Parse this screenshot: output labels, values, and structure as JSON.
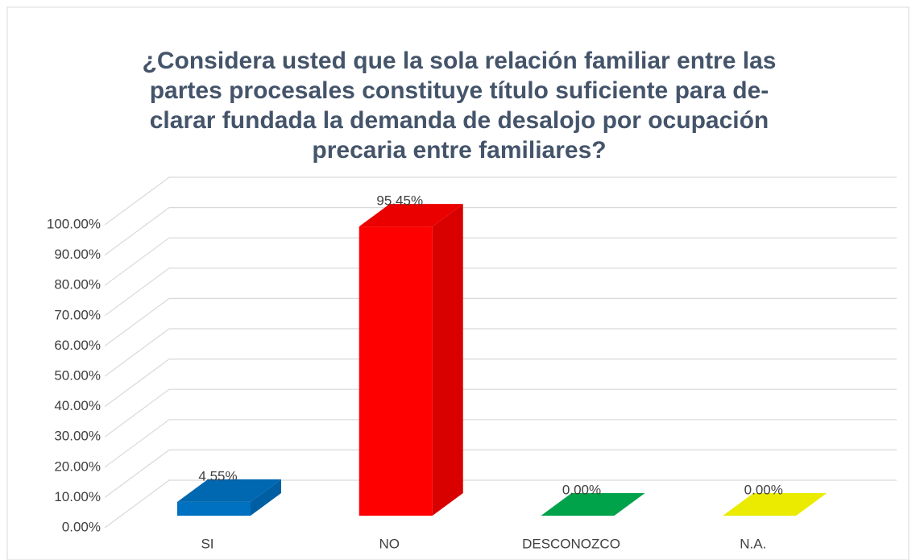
{
  "chart_data": {
    "type": "bar3d",
    "title_lines": [
      "¿Considera usted que la sola relación familiar entre las",
      "partes procesales constituye título suficiente para de-",
      "clarar fundada la demanda de desalojo por ocupación",
      "precaria entre familiares?"
    ],
    "categories": [
      "SI",
      "NO",
      "DESCONOZCO",
      "N.A."
    ],
    "values": [
      4.55,
      95.45,
      0,
      0
    ],
    "value_labels": [
      "4.55%",
      "95.45%",
      "0.00%",
      "0.00%"
    ],
    "colors": [
      "#0070c0",
      "#ff0000",
      "#00b050",
      "#ffff00"
    ],
    "ylim": [
      0,
      100
    ],
    "yticks": [
      {
        "value": 0,
        "label": "0.00%"
      },
      {
        "value": 10,
        "label": "10.00%"
      },
      {
        "value": 20,
        "label": "20.00%"
      },
      {
        "value": 30,
        "label": "30.00%"
      },
      {
        "value": 40,
        "label": "40.00%"
      },
      {
        "value": 50,
        "label": "50.00%"
      },
      {
        "value": 60,
        "label": "60.00%"
      },
      {
        "value": 70,
        "label": "70.00%"
      },
      {
        "value": 80,
        "label": "80.00%"
      },
      {
        "value": 90,
        "label": "90.00%"
      },
      {
        "value": 100,
        "label": "100.00%"
      }
    ],
    "grid": true
  }
}
